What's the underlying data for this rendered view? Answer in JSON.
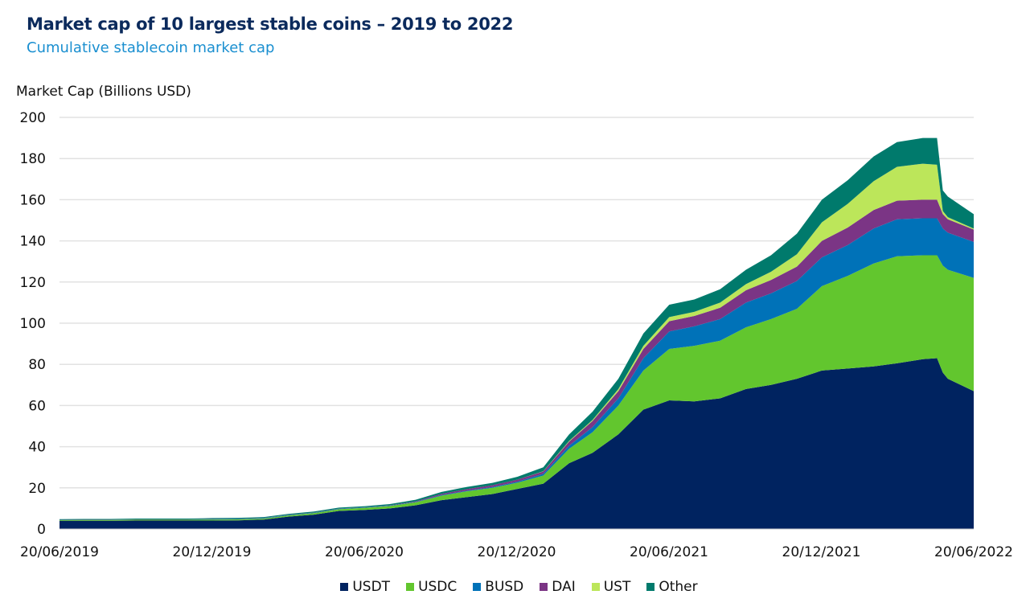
{
  "chart_data": {
    "type": "area",
    "stacked": true,
    "title": "Market cap of 10 largest stable coins – 2019 to 2022",
    "subtitle": "Cumulative stablecoin market cap",
    "ylabel": "Market Cap (Billions USD)",
    "xlabel": "",
    "ylim": [
      0,
      200
    ],
    "yticks": [
      0,
      20,
      40,
      60,
      80,
      100,
      120,
      140,
      160,
      180,
      200
    ],
    "xlim": [
      "2019-06-20",
      "2022-06-20"
    ],
    "xticks": [
      "20/06/2019",
      "20/12/2019",
      "20/06/2020",
      "20/12/2020",
      "20/06/2021",
      "20/12/2021",
      "20/06/2022"
    ],
    "grid": "horizontal",
    "legend": "bottom",
    "x": [
      "2019-06-20",
      "2019-07-20",
      "2019-08-20",
      "2019-09-20",
      "2019-10-20",
      "2019-11-20",
      "2019-12-20",
      "2020-01-20",
      "2020-02-20",
      "2020-03-20",
      "2020-04-20",
      "2020-05-20",
      "2020-06-20",
      "2020-07-20",
      "2020-08-20",
      "2020-09-20",
      "2020-10-20",
      "2020-11-20",
      "2020-12-20",
      "2021-01-20",
      "2021-02-20",
      "2021-03-20",
      "2021-04-20",
      "2021-05-20",
      "2021-06-20",
      "2021-07-20",
      "2021-08-20",
      "2021-09-20",
      "2021-10-20",
      "2021-11-20",
      "2021-12-20",
      "2022-01-20",
      "2022-02-20",
      "2022-03-20",
      "2022-04-20",
      "2022-05-07",
      "2022-05-14",
      "2022-05-20",
      "2022-06-20"
    ],
    "series": [
      {
        "name": "USDT",
        "color": "#002360",
        "values": [
          4.0,
          4.0,
          4.0,
          4.1,
          4.1,
          4.1,
          4.1,
          4.2,
          4.6,
          6.0,
          7.0,
          8.8,
          9.3,
          10.0,
          11.5,
          14.0,
          15.5,
          17.0,
          19.5,
          22.0,
          32.0,
          37.0,
          46.0,
          58.0,
          62.5,
          62.0,
          63.5,
          68.0,
          70.0,
          73.0,
          77.0,
          78.0,
          79.0,
          80.5,
          82.5,
          83.0,
          76.0,
          73.0,
          67.0
        ]
      },
      {
        "name": "USDC",
        "color": "#62c62e",
        "values": [
          0.3,
          0.4,
          0.4,
          0.4,
          0.4,
          0.4,
          0.5,
          0.5,
          0.5,
          0.6,
          0.7,
          0.8,
          1.0,
          1.2,
          1.5,
          2.2,
          2.8,
          3.0,
          3.0,
          4.0,
          7.0,
          10.0,
          14.0,
          19.0,
          25.0,
          27.0,
          28.0,
          30.0,
          32.0,
          34.0,
          41.0,
          45.0,
          50.0,
          52.0,
          50.5,
          50.0,
          52.0,
          53.0,
          55.0
        ]
      },
      {
        "name": "BUSD",
        "color": "#0072b8",
        "values": [
          0.0,
          0.0,
          0.0,
          0.1,
          0.1,
          0.1,
          0.2,
          0.2,
          0.2,
          0.2,
          0.2,
          0.2,
          0.2,
          0.2,
          0.2,
          0.3,
          0.3,
          0.4,
          0.5,
          0.8,
          1.5,
          2.5,
          3.5,
          6.0,
          8.5,
          9.5,
          10.5,
          12.0,
          12.5,
          13.5,
          14.0,
          15.0,
          17.0,
          18.0,
          18.0,
          18.0,
          18.0,
          18.0,
          17.5
        ]
      },
      {
        "name": "DAI",
        "color": "#7b3585",
        "values": [
          0.1,
          0.1,
          0.1,
          0.1,
          0.1,
          0.1,
          0.1,
          0.1,
          0.1,
          0.1,
          0.1,
          0.1,
          0.1,
          0.1,
          0.3,
          0.6,
          0.8,
          0.9,
          1.0,
          1.2,
          2.0,
          3.0,
          3.5,
          4.5,
          5.0,
          5.0,
          5.5,
          6.0,
          6.5,
          7.0,
          8.0,
          8.5,
          9.0,
          9.0,
          9.0,
          9.0,
          7.0,
          6.5,
          6.0
        ]
      },
      {
        "name": "UST",
        "color": "#bce65a",
        "values": [
          0,
          0,
          0,
          0,
          0,
          0,
          0,
          0,
          0,
          0,
          0,
          0,
          0,
          0,
          0,
          0,
          0,
          0,
          0,
          0.1,
          0.3,
          0.5,
          1.0,
          1.5,
          2.0,
          2.0,
          2.5,
          3.0,
          4.0,
          6.0,
          9.0,
          11.5,
          14.0,
          16.5,
          17.5,
          17.0,
          1.5,
          1.0,
          0.5
        ]
      },
      {
        "name": "Other",
        "color": "#007a6c",
        "values": [
          0.4,
          0.4,
          0.4,
          0.4,
          0.4,
          0.4,
          0.4,
          0.4,
          0.4,
          0.4,
          0.5,
          0.5,
          0.5,
          0.6,
          0.7,
          0.9,
          1.0,
          1.1,
          1.4,
          1.9,
          3.2,
          4.0,
          5.0,
          6.0,
          6.0,
          6.0,
          6.5,
          7.0,
          8.0,
          10.0,
          11.0,
          11.5,
          12.0,
          12.0,
          12.5,
          13.0,
          10.0,
          10.0,
          7.0
        ]
      }
    ]
  }
}
